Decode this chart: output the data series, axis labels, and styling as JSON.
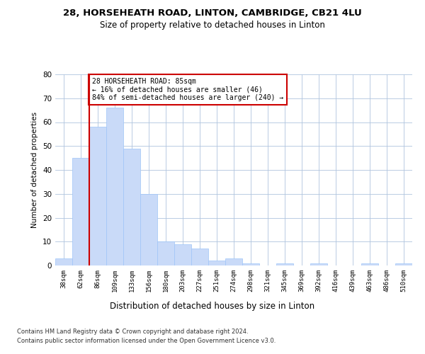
{
  "title1": "28, HORSEHEATH ROAD, LINTON, CAMBRIDGE, CB21 4LU",
  "title2": "Size of property relative to detached houses in Linton",
  "xlabel": "Distribution of detached houses by size in Linton",
  "ylabel": "Number of detached properties",
  "footer1": "Contains HM Land Registry data © Crown copyright and database right 2024.",
  "footer2": "Contains public sector information licensed under the Open Government Licence v3.0.",
  "annotation_line1": "28 HORSEHEATH ROAD: 85sqm",
  "annotation_line2": "← 16% of detached houses are smaller (46)",
  "annotation_line3": "84% of semi-detached houses are larger (240) →",
  "bar_color": "#c9daf8",
  "bar_edge_color": "#9fc5f8",
  "marker_line_color": "#cc0000",
  "annotation_box_color": "#cc0000",
  "grid_color": "#b0c4de",
  "categories": [
    "38sqm",
    "62sqm",
    "86sqm",
    "109sqm",
    "133sqm",
    "156sqm",
    "180sqm",
    "203sqm",
    "227sqm",
    "251sqm",
    "274sqm",
    "298sqm",
    "321sqm",
    "345sqm",
    "369sqm",
    "392sqm",
    "416sqm",
    "439sqm",
    "463sqm",
    "486sqm",
    "510sqm"
  ],
  "values": [
    3,
    45,
    58,
    66,
    49,
    30,
    10,
    9,
    7,
    2,
    3,
    1,
    0,
    1,
    0,
    1,
    0,
    0,
    1,
    0,
    1
  ],
  "ylim": [
    0,
    80
  ],
  "yticks": [
    0,
    10,
    20,
    30,
    40,
    50,
    60,
    70,
    80
  ],
  "marker_bar_index": 2,
  "background_color": "#ffffff"
}
